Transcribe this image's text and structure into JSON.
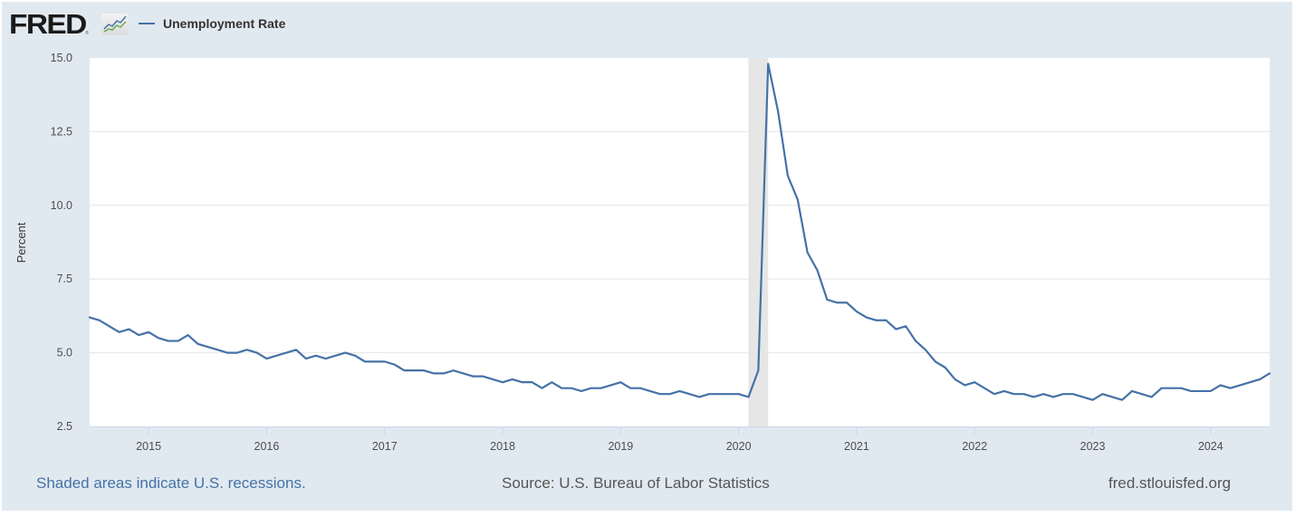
{
  "logo": {
    "text": "FRED",
    "registered": "®",
    "icon": "chart-line-icon"
  },
  "legend": {
    "label": "Unemployment Rate",
    "color": "#4572a7"
  },
  "footer": {
    "note": "Shaded areas indicate U.S. recessions.",
    "source": "Source: U.S. Bureau of Labor Statistics",
    "url": "fred.stlouisfed.org"
  },
  "colors": {
    "panel": "#e1e9f0",
    "plot": "#ffffff",
    "series": "#4572a7",
    "recession": "#e6e6e6",
    "grid": "#e6e6e6"
  },
  "chart_data": {
    "type": "line",
    "title": "",
    "xlabel": "",
    "ylabel": "Percent",
    "ylim": [
      2.5,
      15.0
    ],
    "yticks": [
      "2.5",
      "5.0",
      "7.5",
      "10.0",
      "12.5",
      "15.0"
    ],
    "ytick_values": [
      2.5,
      5.0,
      7.5,
      10.0,
      12.5,
      15.0
    ],
    "xticks": [
      "2015",
      "2016",
      "2017",
      "2018",
      "2019",
      "2020",
      "2021",
      "2022",
      "2023",
      "2024"
    ],
    "x_start": "2014-07",
    "x_end": "2024-07",
    "frequency": "monthly",
    "grid": true,
    "legend_position": "top-left",
    "recessions": [
      {
        "start": "2020-02",
        "end": "2020-04"
      }
    ],
    "series": [
      {
        "name": "Unemployment Rate",
        "values": [
          6.2,
          6.1,
          5.9,
          5.7,
          5.8,
          5.6,
          5.7,
          5.5,
          5.4,
          5.4,
          5.6,
          5.3,
          5.2,
          5.1,
          5.0,
          5.0,
          5.1,
          5.0,
          4.8,
          4.9,
          5.0,
          5.1,
          4.8,
          4.9,
          4.8,
          4.9,
          5.0,
          4.9,
          4.7,
          4.7,
          4.7,
          4.6,
          4.4,
          4.4,
          4.4,
          4.3,
          4.3,
          4.4,
          4.3,
          4.2,
          4.2,
          4.1,
          4.0,
          4.1,
          4.0,
          4.0,
          3.8,
          4.0,
          3.8,
          3.8,
          3.7,
          3.8,
          3.8,
          3.9,
          4.0,
          3.8,
          3.8,
          3.7,
          3.6,
          3.6,
          3.7,
          3.6,
          3.5,
          3.6,
          3.6,
          3.6,
          3.6,
          3.5,
          4.4,
          14.8,
          13.2,
          11.0,
          10.2,
          8.4,
          7.8,
          6.8,
          6.7,
          6.7,
          6.4,
          6.2,
          6.1,
          6.1,
          5.8,
          5.9,
          5.4,
          5.1,
          4.7,
          4.5,
          4.1,
          3.9,
          4.0,
          3.8,
          3.6,
          3.7,
          3.6,
          3.6,
          3.5,
          3.6,
          3.5,
          3.6,
          3.6,
          3.5,
          3.4,
          3.6,
          3.5,
          3.4,
          3.7,
          3.6,
          3.5,
          3.8,
          3.8,
          3.8,
          3.7,
          3.7,
          3.7,
          3.9,
          3.8,
          3.9,
          4.0,
          4.1,
          4.3
        ]
      }
    ]
  }
}
